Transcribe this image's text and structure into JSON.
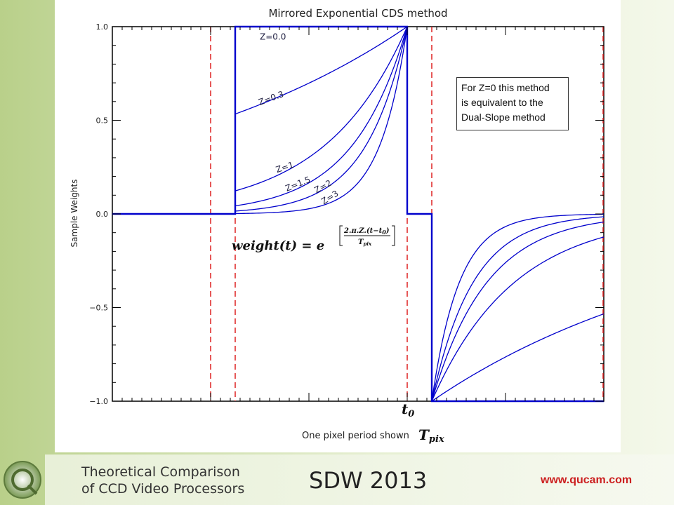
{
  "colors": {
    "curve": "#0000cc",
    "dashed": "#dd2020",
    "axis": "#000000",
    "url": "#cc2020"
  },
  "chart_data": {
    "type": "line",
    "title": "Mirrored Exponential CDS method",
    "xlabel": "One pixel period shown",
    "xlabel_symbol": "T_pix",
    "ylabel": "Sample Weights",
    "ylim": [
      -1.0,
      1.0
    ],
    "yticks": [
      {
        "value": 1.0,
        "label": "1.0"
      },
      {
        "value": 0.5,
        "label": "0.5"
      },
      {
        "value": 0.0,
        "label": "0.0"
      },
      {
        "value": -0.5,
        "label": "−0.5"
      },
      {
        "value": -1.0,
        "label": "−1.0"
      }
    ],
    "xlim": [
      0,
      1
    ],
    "x_marker_label": "t_0",
    "x_marker_value": 0.6,
    "dashed_lines_x": [
      0.2,
      0.25,
      0.6,
      0.65
    ],
    "window_positive": [
      0.25,
      0.6
    ],
    "window_negative": [
      0.65,
      1.0
    ],
    "formula": "weight(t) = e^[2.π.Z.(t−t0) / Tpix]",
    "grid": false,
    "series": [
      {
        "name": "Z=0.0",
        "z": 0.0
      },
      {
        "name": "Z=0.3",
        "z": 0.3
      },
      {
        "name": "Z=1",
        "z": 1.0
      },
      {
        "name": "Z=1.5",
        "z": 1.5
      },
      {
        "name": "Z=2",
        "z": 2.0
      },
      {
        "name": "Z=3",
        "z": 3.0
      }
    ],
    "annotation": {
      "lines": [
        "For Z=0 this method",
        "is  equivalent to the",
        "Dual-Slope method"
      ]
    }
  },
  "footer": {
    "title_line1": "Theoretical Comparison",
    "title_line2": "of CCD Video Processors",
    "event": "SDW 2013",
    "url": "www.qucam.com"
  }
}
